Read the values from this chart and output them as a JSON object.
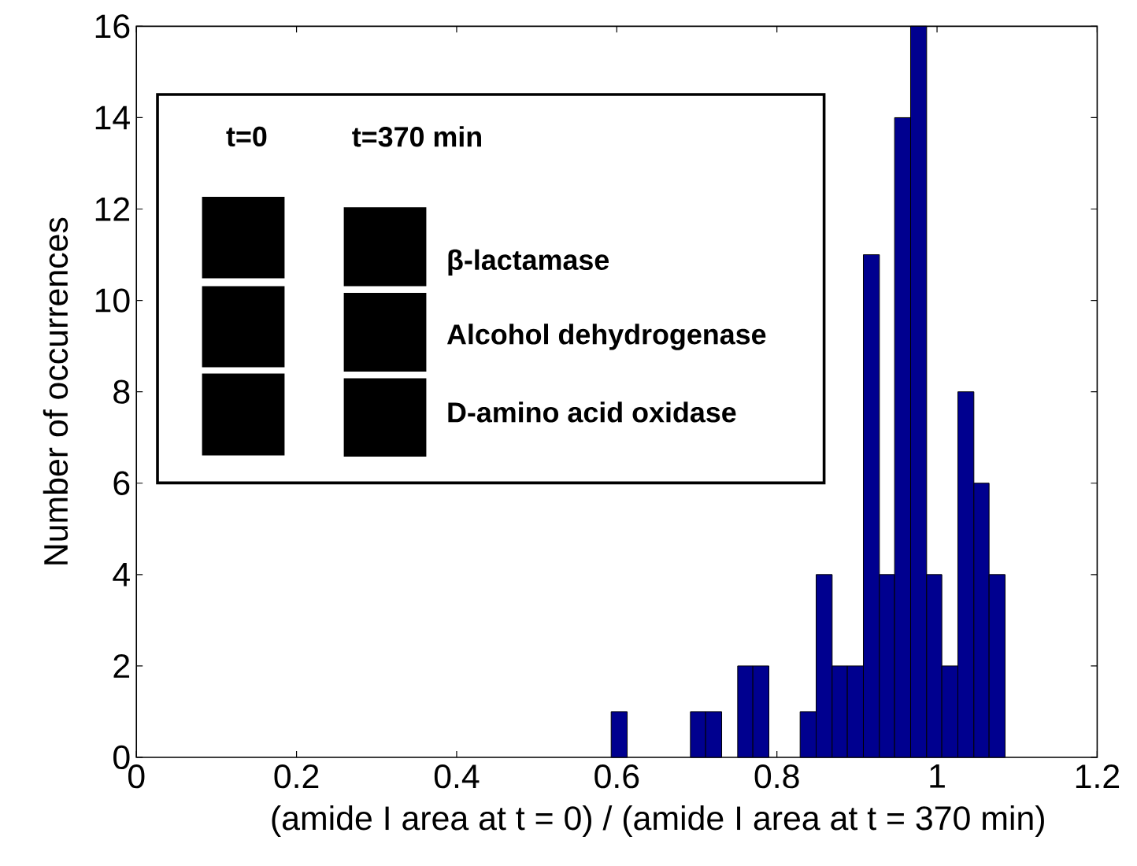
{
  "chart_data": {
    "type": "histogram",
    "xlabel": "(amide I area at t = 0) / (amide I area at t = 370 min)",
    "ylabel": "Number of occurrences",
    "bins": [
      0.593,
      0.613,
      0.692,
      0.711,
      0.731,
      0.751,
      0.77,
      0.79,
      0.829,
      0.849,
      0.869,
      0.888,
      0.908,
      0.928,
      0.947,
      0.967,
      0.987,
      1.006,
      1.026,
      1.046,
      1.065,
      1.085
    ],
    "values": [
      1,
      0,
      1,
      1,
      0,
      2,
      2,
      0,
      1,
      4,
      2,
      2,
      11,
      4,
      14,
      16,
      4,
      2,
      8,
      6,
      4
    ],
    "color": "#00008f",
    "xlim": [
      0,
      1.2
    ],
    "xticks": [
      0,
      0.2,
      0.4,
      0.6,
      0.8,
      1,
      1.2
    ],
    "ylim": [
      0,
      16
    ],
    "yticks": [
      0,
      2,
      4,
      6,
      8,
      10,
      12,
      14,
      16
    ],
    "annotations": [
      "t=0",
      "t=370 min",
      "β-lactamase",
      "Alcohol dehydrogenase",
      "D-amino acid oxidase"
    ]
  }
}
